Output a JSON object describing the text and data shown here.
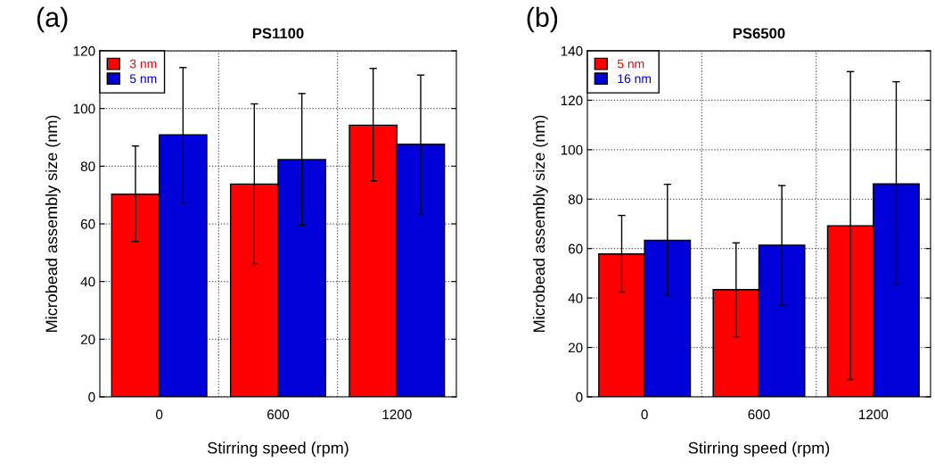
{
  "chart_data": [
    {
      "type": "bar",
      "title": "PS1100",
      "xlabel": "Stirring speed (rpm)",
      "ylabel": "Microbead assembly size (nm)",
      "annotations": [
        "(a)"
      ],
      "categories": [
        "0",
        "600",
        "1200"
      ],
      "ylim": [
        0,
        120
      ],
      "yticks": [
        0,
        20,
        40,
        60,
        80,
        100,
        120
      ],
      "grid": true,
      "legend": "top left",
      "series": [
        {
          "name": "3 nm",
          "color": "#ff0000",
          "values": [
            70.3,
            73.8,
            94.2
          ],
          "errors": [
            [
              53.9,
              87.0
            ],
            [
              46.2,
              101.6
            ],
            [
              74.9,
              113.9
            ]
          ]
        },
        {
          "name": "5 nm",
          "color": "#0000d8",
          "values": [
            90.9,
            82.3,
            87.6
          ],
          "errors": [
            [
              67.2,
              114.2
            ],
            [
              59.6,
              105.2
            ],
            [
              63.5,
              111.6
            ]
          ]
        }
      ]
    },
    {
      "type": "bar",
      "title": "PS6500",
      "xlabel": "Stirring speed (rpm)",
      "ylabel": "Microbead assembly size (nm)",
      "annotations": [
        "(b)"
      ],
      "categories": [
        "0",
        "600",
        "1200"
      ],
      "ylim": [
        0,
        140
      ],
      "yticks": [
        0,
        20,
        40,
        60,
        80,
        100,
        120,
        140
      ],
      "grid": true,
      "legend": "top left",
      "series": [
        {
          "name": "5 nm",
          "color": "#ff0000",
          "values": [
            57.8,
            43.4,
            69.2
          ],
          "errors": [
            [
              42.4,
              73.4
            ],
            [
              24.3,
              62.3
            ],
            [
              7.0,
              131.6
            ]
          ]
        },
        {
          "name": "16 nm",
          "color": "#0000d8",
          "values": [
            63.3,
            61.4,
            86.2
          ],
          "errors": [
            [
              41.0,
              86.0
            ],
            [
              37.2,
              85.5
            ],
            [
              45.3,
              127.5
            ]
          ]
        }
      ]
    }
  ]
}
